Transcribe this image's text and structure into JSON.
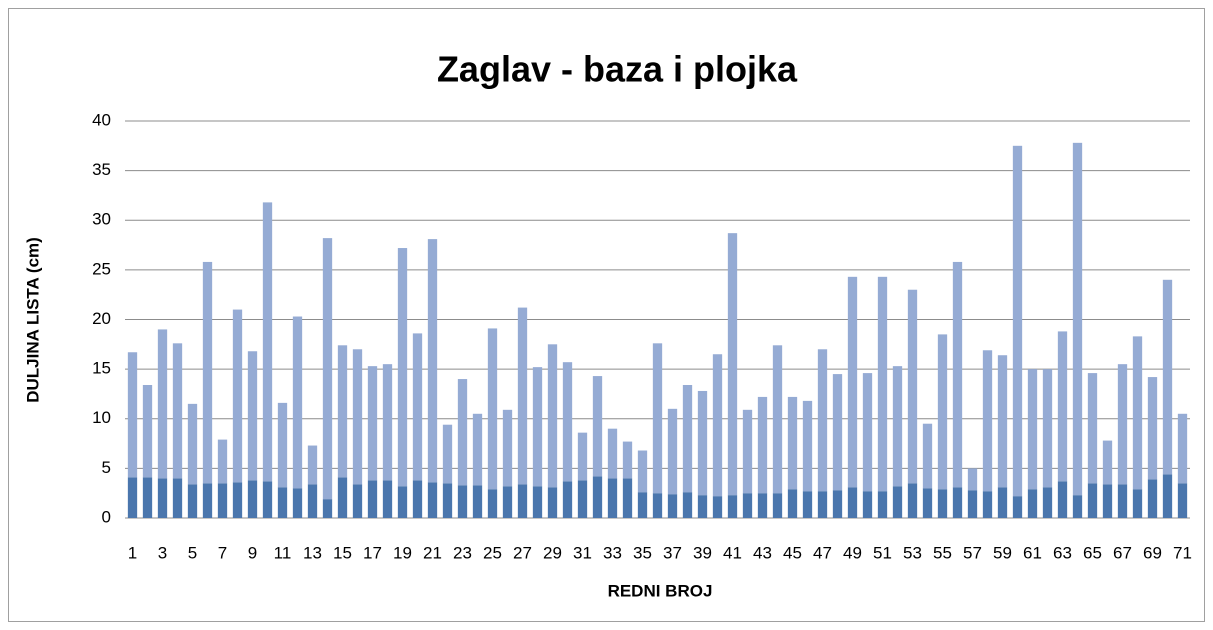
{
  "chart_data": {
    "type": "stacked_bar",
    "title": "Zaglav - baza i plojka",
    "x_label": "REDNI BROJ",
    "y_label": "DULJINA LISTA (cm)",
    "categories": [
      "1",
      null,
      "3",
      null,
      "5",
      null,
      "7",
      null,
      "9",
      null,
      "11",
      null,
      "13",
      null,
      "15",
      null,
      "17",
      null,
      "19",
      null,
      "21",
      null,
      "23",
      null,
      "25",
      null,
      "27",
      null,
      "29",
      null,
      "31",
      null,
      "33",
      null,
      "35",
      null,
      "37",
      null,
      "39",
      null,
      "41",
      null,
      "43",
      null,
      "45",
      null,
      "47",
      null,
      "49",
      null,
      "51",
      null,
      "53",
      null,
      "55",
      null,
      "57",
      null,
      "59",
      null,
      "61",
      null,
      "63",
      null,
      "65",
      null,
      "67",
      null,
      "69",
      null,
      "71"
    ],
    "series": [
      {
        "color": "#4a76ad",
        "values": [
          4.1,
          4.1,
          4.0,
          4.0,
          3.4,
          3.5,
          3.5,
          3.6,
          3.8,
          3.7,
          3.1,
          3.0,
          3.4,
          1.9,
          4.1,
          3.4,
          3.8,
          3.8,
          3.2,
          3.8,
          3.6,
          3.5,
          3.3,
          3.3,
          2.9,
          3.2,
          3.4,
          3.2,
          3.1,
          3.7,
          3.8,
          4.2,
          4.0,
          4.0,
          2.6,
          2.5,
          2.4,
          2.6,
          2.3,
          2.2,
          2.3,
          2.5,
          2.5,
          2.5,
          2.9,
          2.7,
          2.7,
          2.8,
          3.1,
          2.7,
          2.7,
          3.2,
          3.5,
          3.0,
          2.9,
          3.1,
          2.8,
          2.7,
          3.1,
          2.2,
          2.9,
          3.1,
          3.7,
          2.3,
          3.5,
          3.4,
          3.4,
          2.9,
          3.9,
          4.4,
          3.5
        ]
      },
      {
        "color": "#95abd4",
        "values": [
          12.6,
          9.3,
          15.0,
          13.6,
          8.1,
          22.3,
          4.4,
          17.4,
          13.0,
          28.1,
          8.5,
          17.3,
          3.9,
          26.3,
          13.3,
          13.6,
          11.5,
          11.7,
          24.0,
          14.8,
          24.5,
          5.9,
          10.7,
          7.2,
          16.2,
          7.7,
          17.8,
          12.0,
          14.4,
          12.0,
          4.8,
          10.1,
          5.0,
          3.7,
          4.2,
          15.1,
          8.6,
          10.8,
          10.5,
          14.3,
          26.4,
          8.4,
          9.7,
          14.9,
          9.3,
          9.1,
          14.3,
          11.7,
          21.2,
          11.9,
          21.6,
          12.1,
          19.5,
          6.5,
          15.6,
          22.7,
          2.2,
          14.2,
          13.3,
          35.3,
          12.1,
          11.9,
          15.1,
          35.5,
          11.1,
          4.4,
          12.1,
          15.4,
          10.3,
          19.6,
          7.0
        ]
      }
    ],
    "ylim": [
      0,
      40
    ],
    "yticks": [
      0,
      5,
      10,
      15,
      20,
      25,
      30,
      35,
      40
    ],
    "grid": true
  }
}
